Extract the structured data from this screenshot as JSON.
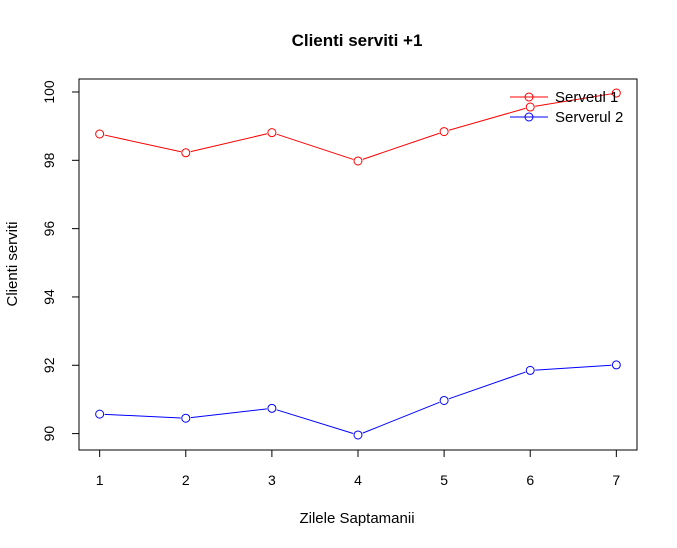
{
  "chart_data": {
    "type": "line",
    "title": "Clienti serviti +1",
    "xlabel": "Zilele Saptamanii",
    "ylabel": "Clienti serviti",
    "x": [
      1,
      2,
      3,
      4,
      5,
      6,
      7
    ],
    "xlim": [
      0.76,
      7.24
    ],
    "ylim": [
      89.52,
      100.38
    ],
    "yticks": [
      90,
      92,
      94,
      96,
      98,
      100
    ],
    "grid": false,
    "legend_position": "top-right",
    "series": [
      {
        "name": "Serveul 1",
        "color": "#ff0000",
        "values": [
          98.77,
          98.22,
          98.81,
          97.98,
          98.84,
          99.56,
          99.97
        ]
      },
      {
        "name": "Serverul 2",
        "color": "#0000ff",
        "values": [
          90.57,
          90.45,
          90.74,
          89.96,
          90.97,
          91.85,
          92.01
        ]
      }
    ]
  }
}
